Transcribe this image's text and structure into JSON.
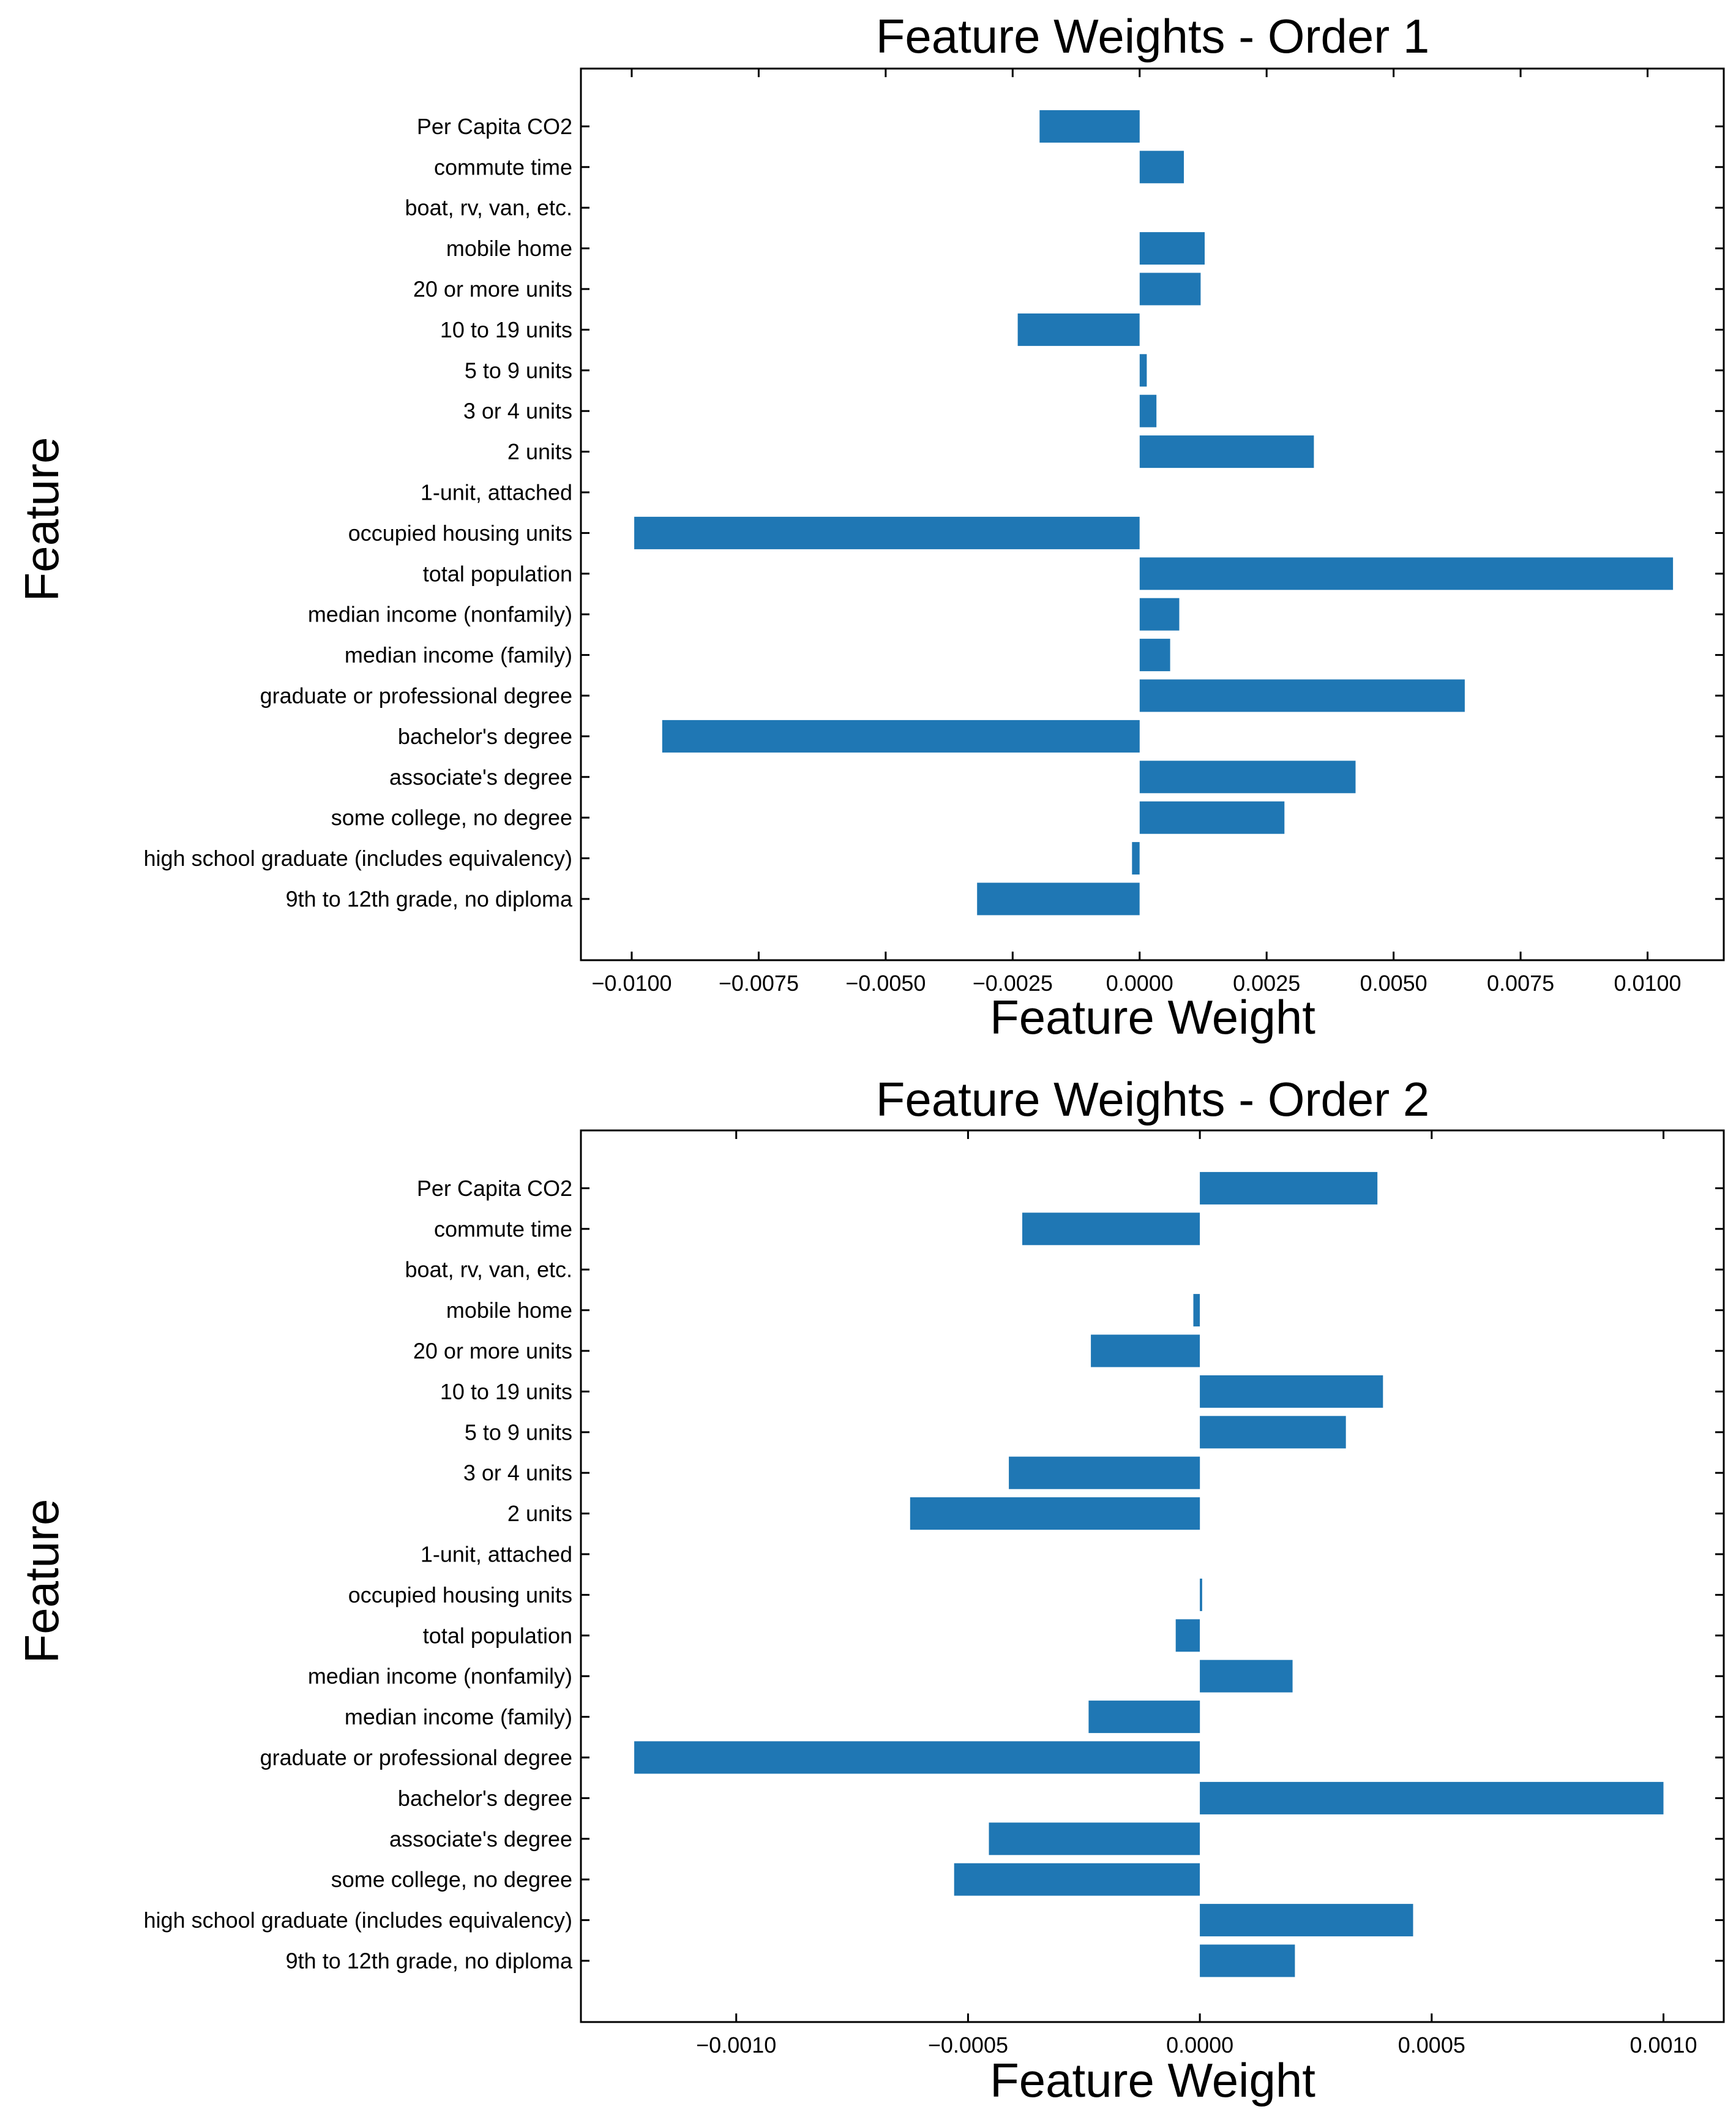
{
  "chart_data": [
    {
      "type": "bar",
      "orientation": "horizontal",
      "title": "Feature Weights - Order 1",
      "xlabel": "Feature Weight",
      "ylabel": "Feature",
      "xlim": [
        -0.011,
        0.0115
      ],
      "xticks": [
        -0.01,
        -0.0075,
        -0.005,
        -0.0025,
        0.0,
        0.0025,
        0.005,
        0.0075,
        0.01
      ],
      "xtick_labels": [
        "−0.0100",
        "−0.0075",
        "−0.0050",
        "−0.0025",
        "0.0000",
        "0.0025",
        "0.0050",
        "0.0075",
        "0.0100"
      ],
      "grid": false,
      "bar_color": "#1f77b4",
      "categories": [
        "9th to 12th grade, no diploma",
        "high school graduate (includes equivalency)",
        "some college, no degree",
        "associate's degree",
        "bachelor's degree",
        "graduate or professional degree",
        "median income (family)",
        "median income (nonfamily)",
        "total population",
        "occupied housing units",
        "1-unit, attached",
        "2 units",
        "3 or 4 units",
        "5 to 9 units",
        "10 to 19 units",
        "20 or more units",
        "mobile home",
        "boat, rv, van, etc.",
        "commute time",
        "Per Capita CO2"
      ],
      "values": [
        -0.0032,
        -0.00015,
        0.00285,
        0.00425,
        -0.0094,
        0.0064,
        0.0006,
        0.00078,
        0.0105,
        -0.00995,
        0.0,
        0.00343,
        0.00033,
        0.00014,
        -0.0024,
        0.0012,
        0.00128,
        0.0,
        0.00087,
        -0.00197
      ]
    },
    {
      "type": "bar",
      "orientation": "horizontal",
      "title": "Feature Weights - Order 2",
      "xlabel": "Feature Weight",
      "ylabel": "Feature",
      "xlim": [
        -0.001335,
        0.00113
      ],
      "xticks": [
        -0.001,
        -0.0005,
        0.0,
        0.0005,
        0.001
      ],
      "xtick_labels": [
        "−0.0010",
        "−0.0005",
        "0.0000",
        "0.0005",
        "0.0010"
      ],
      "grid": false,
      "bar_color": "#1f77b4",
      "categories": [
        "9th to 12th grade, no diploma",
        "high school graduate (includes equivalency)",
        "some college, no degree",
        "associate's degree",
        "bachelor's degree",
        "graduate or professional degree",
        "median income (family)",
        "median income (nonfamily)",
        "total population",
        "occupied housing units",
        "1-unit, attached",
        "2 units",
        "3 or 4 units",
        "5 to 9 units",
        "10 to 19 units",
        "20 or more units",
        "mobile home",
        "boat, rv, van, etc.",
        "commute time",
        "Per Capita CO2"
      ],
      "values": [
        0.000205,
        0.00046,
        -0.00053,
        -0.000455,
        0.001,
        -0.00122,
        -0.00024,
        0.0002,
        -5.2e-05,
        5e-06,
        0.0,
        -0.000625,
        -0.000412,
        0.000315,
        0.000395,
        -0.000235,
        -1.4e-05,
        0.0,
        -0.000383,
        0.000383
      ]
    }
  ]
}
